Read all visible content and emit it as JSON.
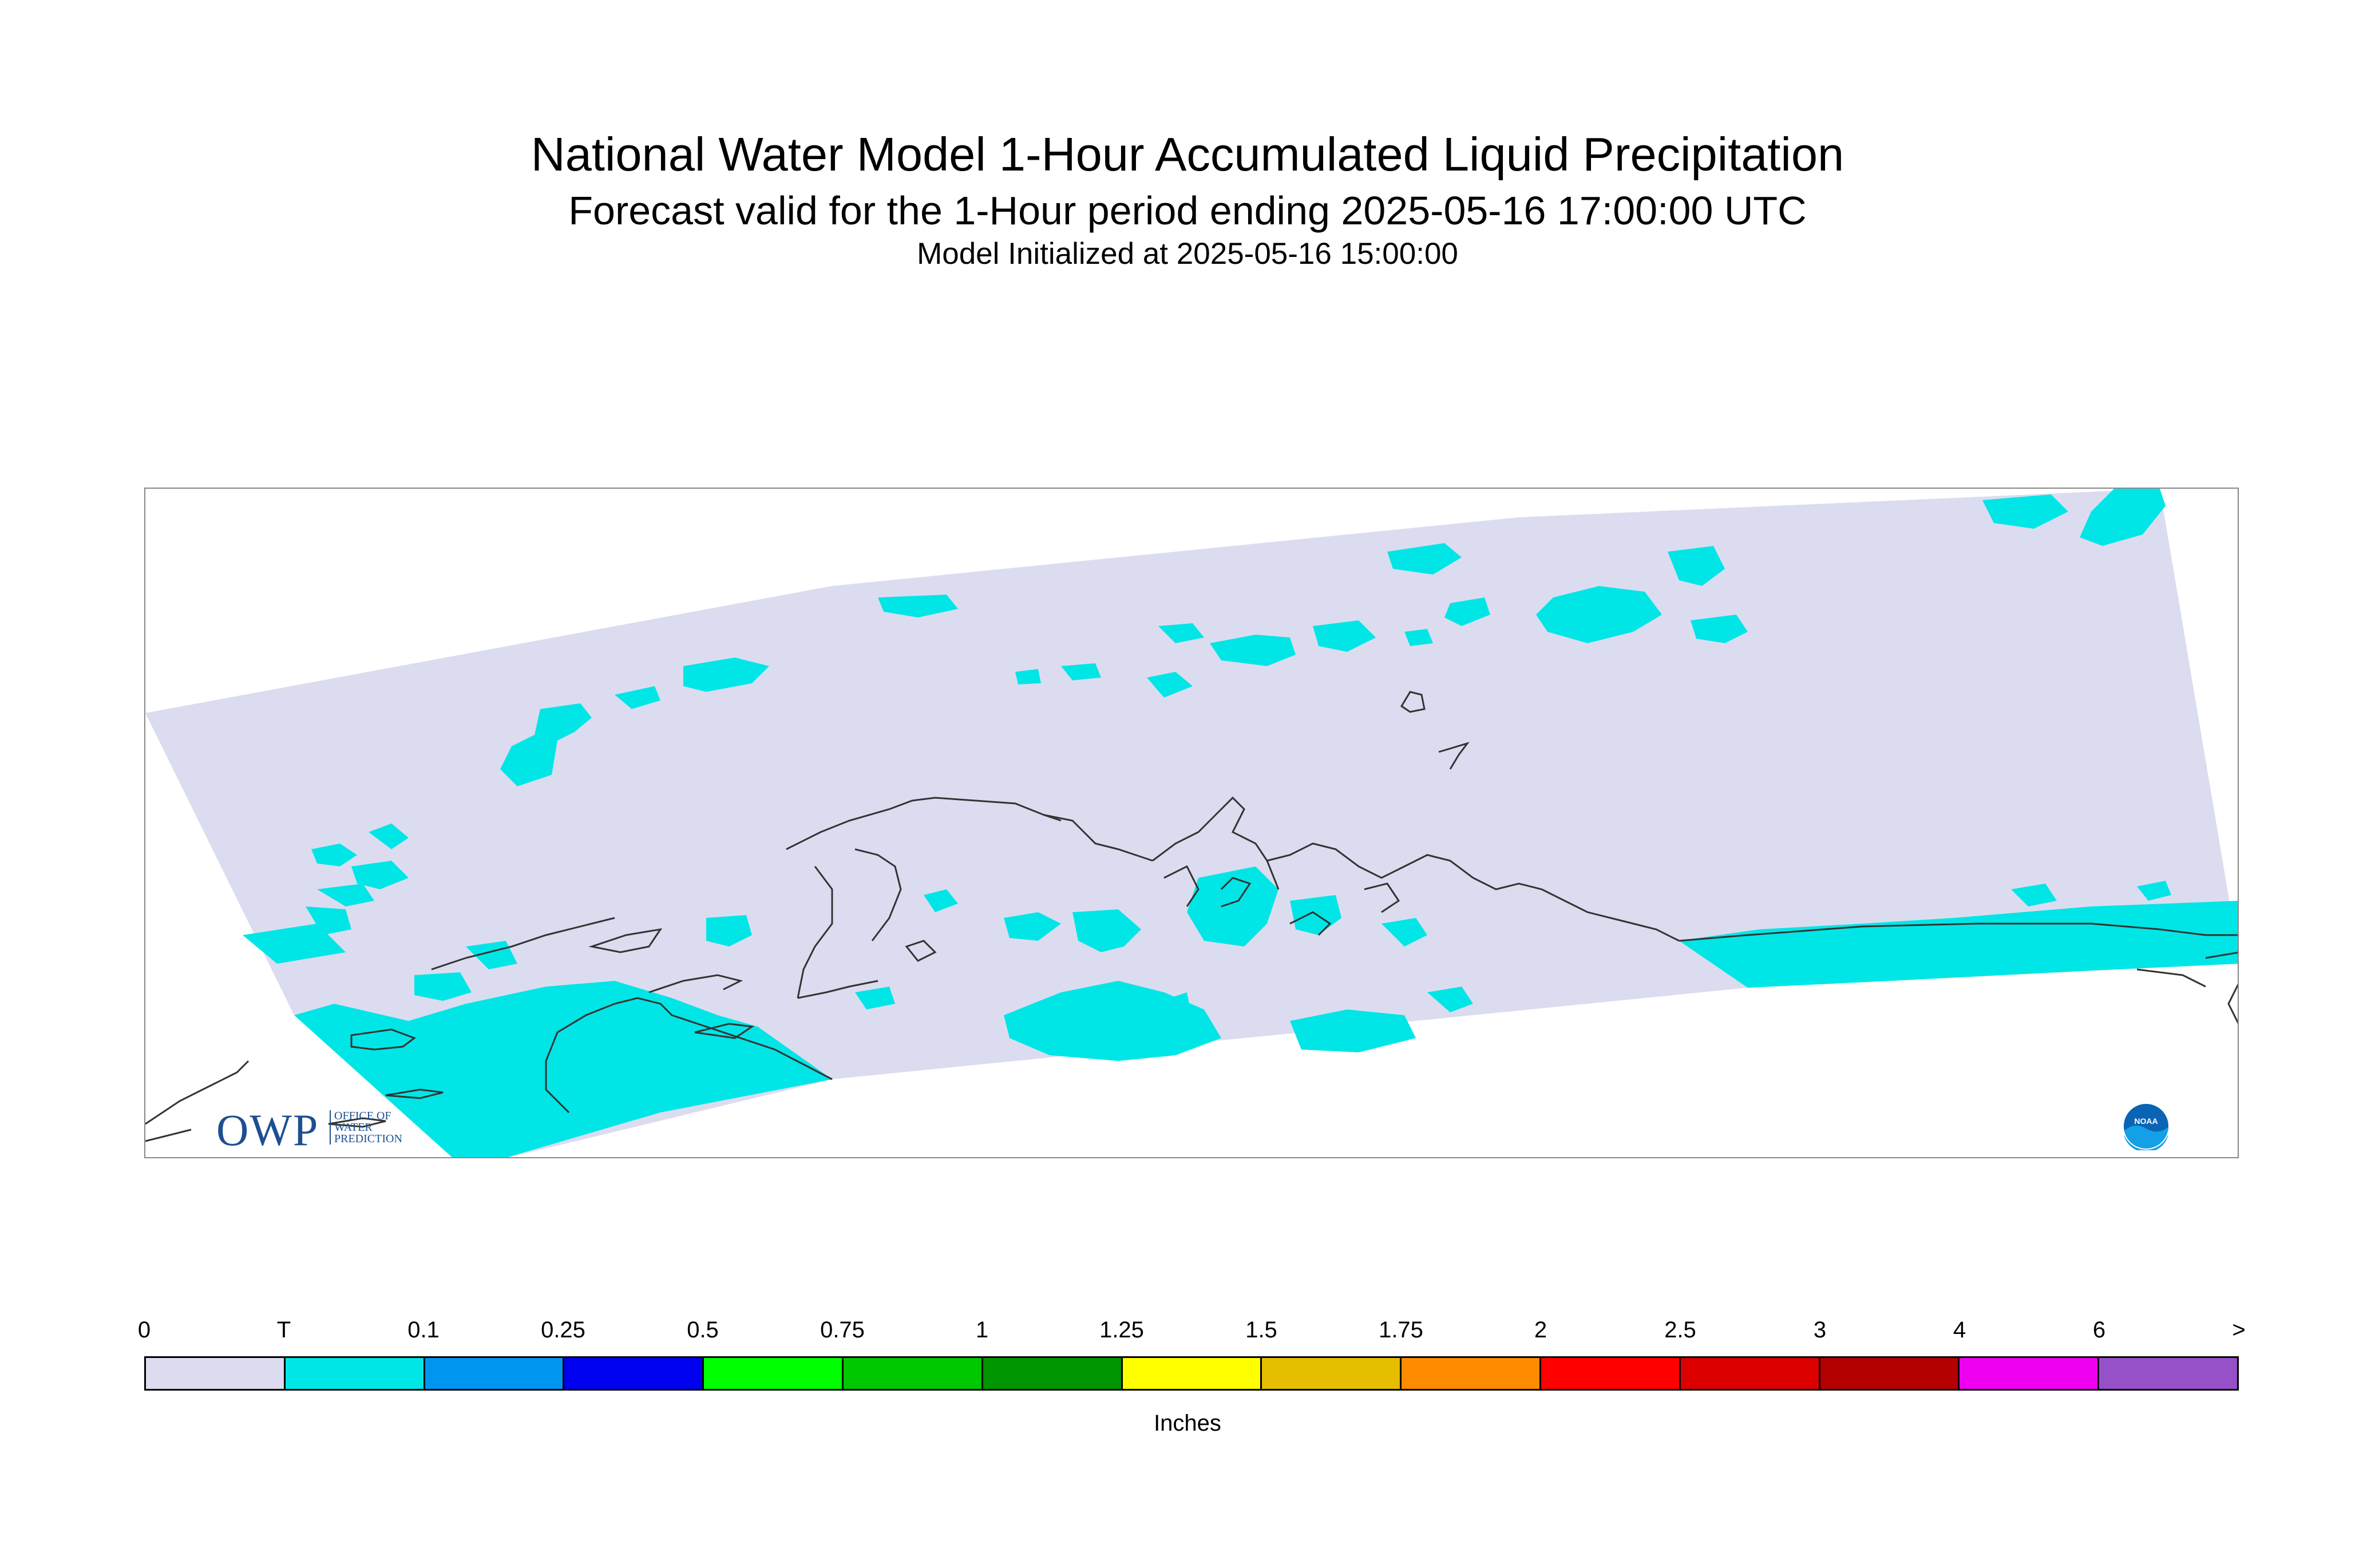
{
  "title": "National Water Model 1-Hour Accumulated Liquid Precipitation",
  "subtitle": "Forecast valid for the 1-Hour period ending 2025-05-16 17:00:00 UTC",
  "init_line": "Model Initialized at 2025-05-16 15:00:00",
  "logo": {
    "owp_text": "OWP",
    "owp_sub": [
      "OFFICE OF",
      "WATER",
      "PREDICTION"
    ],
    "noaa_text": "NOAA"
  },
  "legend": {
    "unit": "Inches",
    "labels": [
      "0",
      "T",
      "0.1",
      "0.25",
      "0.5",
      "0.75",
      "1",
      "1.25",
      "1.5",
      "1.75",
      "2",
      "2.5",
      "3",
      "4",
      "6",
      ">"
    ],
    "colors": [
      "#dcdcf0",
      "#00e6e6",
      "#0096f0",
      "#0000f0",
      "#00ff00",
      "#00c800",
      "#009600",
      "#ffff00",
      "#e6be00",
      "#ff8c00",
      "#ff0000",
      "#dc0000",
      "#b40000",
      "#f000f0",
      "#9650c8"
    ]
  },
  "colors": {
    "no_precip": "#dcdcf0",
    "trace": "#00e6e6",
    "coast": "#333333",
    "frame": "#888888"
  }
}
